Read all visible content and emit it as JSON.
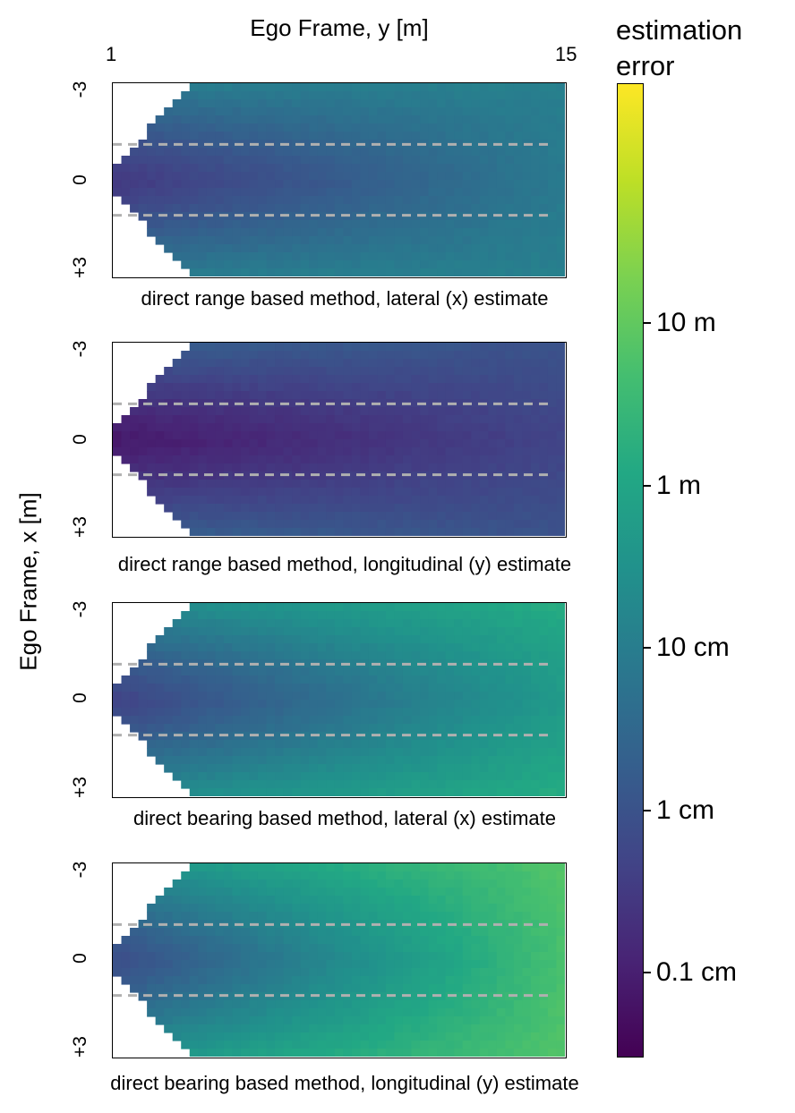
{
  "chart_data": {
    "type": "heatmap",
    "xlabel": "Ego Frame, y [m]",
    "ylabel": "Ego Frame, x [m]",
    "x_tick_labels": [
      "1",
      "15"
    ],
    "xlim": [
      1,
      15
    ],
    "y_tick_labels": [
      "-3",
      "0",
      "+3"
    ],
    "ylim": [
      -3,
      3
    ],
    "lane_lines_x": [
      -1.1,
      1.1
    ],
    "colormap": "viridis",
    "colorbar": {
      "title": "estimation error",
      "scale": "log",
      "range_m": [
        0.0003,
        300
      ],
      "ticks": [
        {
          "label": "10 m",
          "value_m": 10
        },
        {
          "label": "1 m",
          "value_m": 1
        },
        {
          "label": "10 cm",
          "value_m": 0.1
        },
        {
          "label": "1 cm",
          "value_m": 0.01
        },
        {
          "label": "0.1 cm",
          "value_m": 0.001
        }
      ]
    },
    "panels": [
      {
        "caption": "direct range based method, lateral (x) estimate",
        "error_m_near_center": 0.003,
        "error_m_far_center": 0.08,
        "error_m_near_edge": 0.1,
        "error_m_far_edge": 0.12
      },
      {
        "caption": "direct range based method, longitudinal (y) estimate",
        "error_m_near_center": 0.0008,
        "error_m_far_center": 0.005,
        "error_m_near_edge": 0.02,
        "error_m_far_edge": 0.01
      },
      {
        "caption": "direct bearing based method, lateral (x) estimate",
        "error_m_near_center": 0.005,
        "error_m_far_center": 0.5,
        "error_m_near_edge": 0.2,
        "error_m_far_edge": 1.5
      },
      {
        "caption": "direct bearing based method, longitudinal (y) estimate",
        "error_m_near_center": 0.008,
        "error_m_far_center": 5,
        "error_m_near_edge": 0.3,
        "error_m_far_edge": 7
      }
    ]
  }
}
